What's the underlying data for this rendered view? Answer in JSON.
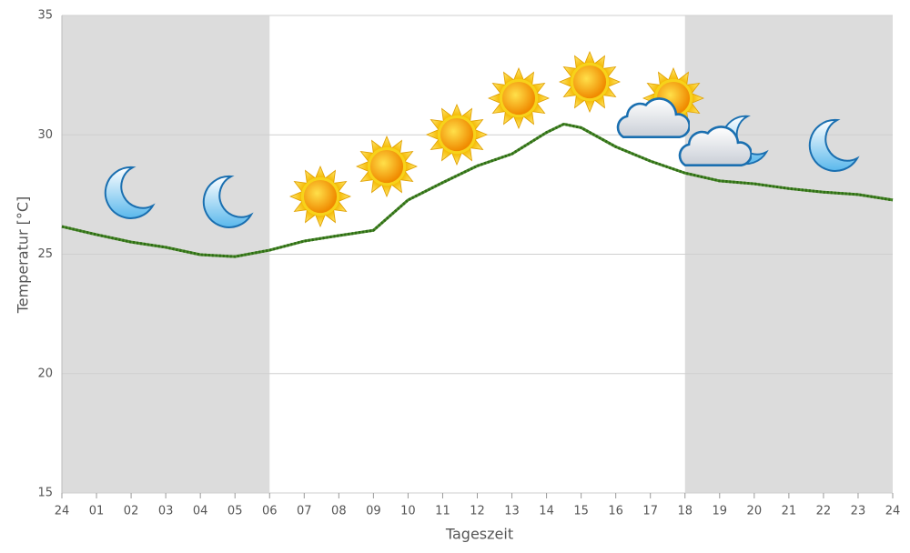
{
  "chart_data": {
    "type": "line",
    "x_label": "Tageszeit",
    "y_label": "Temperatur [°C]",
    "x": [
      0,
      1,
      2,
      3,
      4,
      5,
      6,
      7,
      8,
      9,
      10,
      11,
      12,
      13,
      14,
      14.5,
      15,
      16,
      17,
      18,
      19,
      20,
      21,
      22,
      23,
      24
    ],
    "series": [
      {
        "color": "#4a8a2a",
        "values": [
          26.16,
          25.82,
          25.51,
          25.29,
          24.98,
          24.9,
          25.17,
          25.55,
          25.78,
          26.0,
          27.27,
          28.0,
          28.7,
          29.2,
          30.1,
          30.45,
          30.3,
          29.5,
          28.9,
          28.4,
          28.07,
          27.95,
          27.75,
          27.6,
          27.5,
          27.27
        ]
      }
    ],
    "xlim": [
      0,
      24
    ],
    "ylim": [
      15,
      35
    ],
    "xticks": [
      {
        "value": 0,
        "label": "24"
      },
      {
        "value": 1,
        "label": "01"
      },
      {
        "value": 2,
        "label": "02"
      },
      {
        "value": 3,
        "label": "03"
      },
      {
        "value": 4,
        "label": "04"
      },
      {
        "value": 5,
        "label": "05"
      },
      {
        "value": 6,
        "label": "06"
      },
      {
        "value": 7,
        "label": "07"
      },
      {
        "value": 8,
        "label": "08"
      },
      {
        "value": 9,
        "label": "09"
      },
      10,
      11,
      12,
      13,
      14,
      15,
      16,
      17,
      18,
      19,
      20,
      21,
      22,
      23,
      24
    ],
    "yticks": [
      15,
      20,
      25,
      30,
      35
    ],
    "grid": true,
    "shaded_ranges": [
      [
        0,
        6
      ],
      [
        18,
        24
      ]
    ],
    "shade_color": "#dcdcdc"
  }
}
